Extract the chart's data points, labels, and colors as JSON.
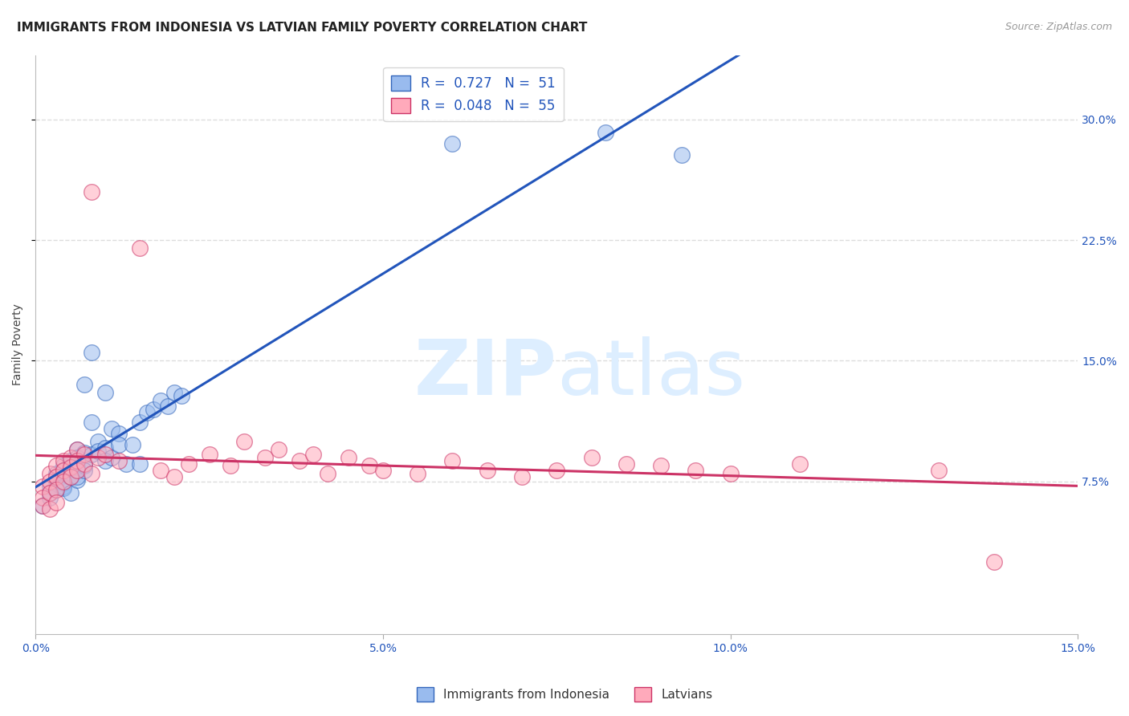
{
  "title": "IMMIGRANTS FROM INDONESIA VS LATVIAN FAMILY POVERTY CORRELATION CHART",
  "source": "Source: ZipAtlas.com",
  "ylabel": "Family Poverty",
  "xlim": [
    0.0,
    0.15
  ],
  "ylim": [
    -0.02,
    0.34
  ],
  "xtick_vals": [
    0.0,
    0.05,
    0.1,
    0.15
  ],
  "xtick_labels": [
    "0.0%",
    "5.0%",
    "10.0%",
    "15.0%"
  ],
  "ytick_vals": [
    0.075,
    0.15,
    0.225,
    0.3
  ],
  "ytick_labels": [
    "7.5%",
    "15.0%",
    "22.5%",
    "30.0%"
  ],
  "blue_R": 0.727,
  "blue_N": 51,
  "pink_R": 0.048,
  "pink_N": 55,
  "blue_color": "#99bbee",
  "pink_color": "#ffaabb",
  "blue_edge_color": "#3366bb",
  "pink_edge_color": "#cc3366",
  "blue_line_color": "#2255bb",
  "pink_line_color": "#cc3366",
  "watermark_color": "#ddeeff",
  "background_color": "#ffffff",
  "grid_color": "#dddddd",
  "title_fontsize": 11,
  "axis_label_fontsize": 10,
  "tick_fontsize": 10,
  "legend_fontsize": 12,
  "blue_scatter_x": [
    0.001,
    0.002,
    0.002,
    0.002,
    0.003,
    0.003,
    0.003,
    0.003,
    0.004,
    0.004,
    0.004,
    0.004,
    0.004,
    0.005,
    0.005,
    0.005,
    0.005,
    0.006,
    0.006,
    0.006,
    0.006,
    0.006,
    0.007,
    0.007,
    0.007,
    0.007,
    0.008,
    0.008,
    0.008,
    0.009,
    0.009,
    0.01,
    0.01,
    0.01,
    0.011,
    0.011,
    0.012,
    0.012,
    0.013,
    0.014,
    0.015,
    0.015,
    0.016,
    0.017,
    0.018,
    0.019,
    0.02,
    0.021,
    0.06,
    0.082,
    0.093
  ],
  "blue_scatter_y": [
    0.06,
    0.072,
    0.068,
    0.065,
    0.08,
    0.075,
    0.07,
    0.078,
    0.085,
    0.082,
    0.074,
    0.072,
    0.071,
    0.088,
    0.083,
    0.078,
    0.068,
    0.095,
    0.09,
    0.084,
    0.076,
    0.078,
    0.135,
    0.093,
    0.085,
    0.082,
    0.155,
    0.112,
    0.092,
    0.1,
    0.094,
    0.13,
    0.096,
    0.088,
    0.108,
    0.09,
    0.105,
    0.098,
    0.086,
    0.098,
    0.086,
    0.112,
    0.118,
    0.12,
    0.125,
    0.122,
    0.13,
    0.128,
    0.285,
    0.292,
    0.278
  ],
  "pink_scatter_x": [
    0.001,
    0.001,
    0.001,
    0.002,
    0.002,
    0.002,
    0.002,
    0.003,
    0.003,
    0.003,
    0.003,
    0.004,
    0.004,
    0.004,
    0.005,
    0.005,
    0.005,
    0.006,
    0.006,
    0.006,
    0.007,
    0.007,
    0.008,
    0.008,
    0.009,
    0.01,
    0.012,
    0.015,
    0.018,
    0.02,
    0.022,
    0.025,
    0.028,
    0.03,
    0.033,
    0.035,
    0.038,
    0.04,
    0.042,
    0.045,
    0.048,
    0.05,
    0.055,
    0.06,
    0.065,
    0.07,
    0.075,
    0.08,
    0.085,
    0.09,
    0.095,
    0.1,
    0.11,
    0.13,
    0.138
  ],
  "pink_scatter_y": [
    0.072,
    0.065,
    0.06,
    0.08,
    0.075,
    0.068,
    0.058,
    0.085,
    0.078,
    0.07,
    0.062,
    0.088,
    0.082,
    0.075,
    0.09,
    0.084,
    0.078,
    0.095,
    0.088,
    0.082,
    0.092,
    0.086,
    0.255,
    0.08,
    0.09,
    0.092,
    0.088,
    0.22,
    0.082,
    0.078,
    0.086,
    0.092,
    0.085,
    0.1,
    0.09,
    0.095,
    0.088,
    0.092,
    0.08,
    0.09,
    0.085,
    0.082,
    0.08,
    0.088,
    0.082,
    0.078,
    0.082,
    0.09,
    0.086,
    0.085,
    0.082,
    0.08,
    0.086,
    0.082,
    0.025
  ]
}
